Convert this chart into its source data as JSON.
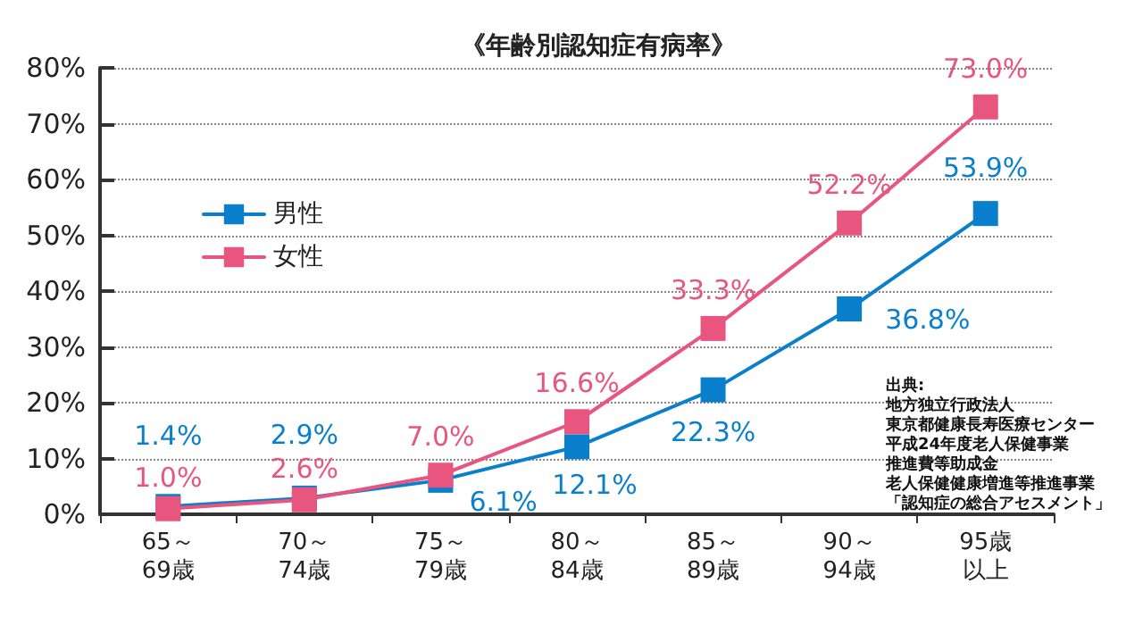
{
  "chart_data": {
    "type": "line",
    "title": "《年齢別認知症有病率》",
    "categories": [
      "65～69歳",
      "70～74歳",
      "75～79歳",
      "80～84歳",
      "85～89歳",
      "90～94歳",
      "95歳以上"
    ],
    "series": [
      {
        "name": "男性",
        "color": "#0a7fcc",
        "values": [
          1.4,
          2.9,
          6.1,
          12.1,
          22.3,
          36.8,
          53.9
        ],
        "value_labels": [
          "1.4%",
          "2.9%",
          "6.1%",
          "12.1%",
          "22.3%",
          "36.8%",
          "53.9%"
        ]
      },
      {
        "name": "女性",
        "color": "#e8557f",
        "values": [
          1.0,
          2.6,
          7.0,
          16.6,
          33.3,
          52.2,
          73.0
        ],
        "value_labels": [
          "1.0%",
          "2.6%",
          "7.0%",
          "16.6%",
          "33.3%",
          "52.2%",
          "73.0%"
        ]
      }
    ],
    "ylim": [
      0,
      80
    ],
    "yticks": [
      {
        "value": 0,
        "label": "0%"
      },
      {
        "value": 10,
        "label": "10%"
      },
      {
        "value": 20,
        "label": "20%"
      },
      {
        "value": 30,
        "label": "30%"
      },
      {
        "value": 40,
        "label": "40%"
      },
      {
        "value": 50,
        "label": "50%"
      },
      {
        "value": 60,
        "label": "60%"
      },
      {
        "value": 70,
        "label": "70%"
      },
      {
        "value": 80,
        "label": "80%"
      }
    ],
    "grid": "y",
    "legend": "top left",
    "marker": "square",
    "line_style": "solid",
    "annotations": [
      "出典:",
      "地方独立行政法人",
      "東京都健康長寿医療センター",
      "平成24年度老人保健事業",
      "推進費等助成金",
      "老人保健健康増進等推進事業",
      "「認知症の総合アセスメント」"
    ]
  }
}
